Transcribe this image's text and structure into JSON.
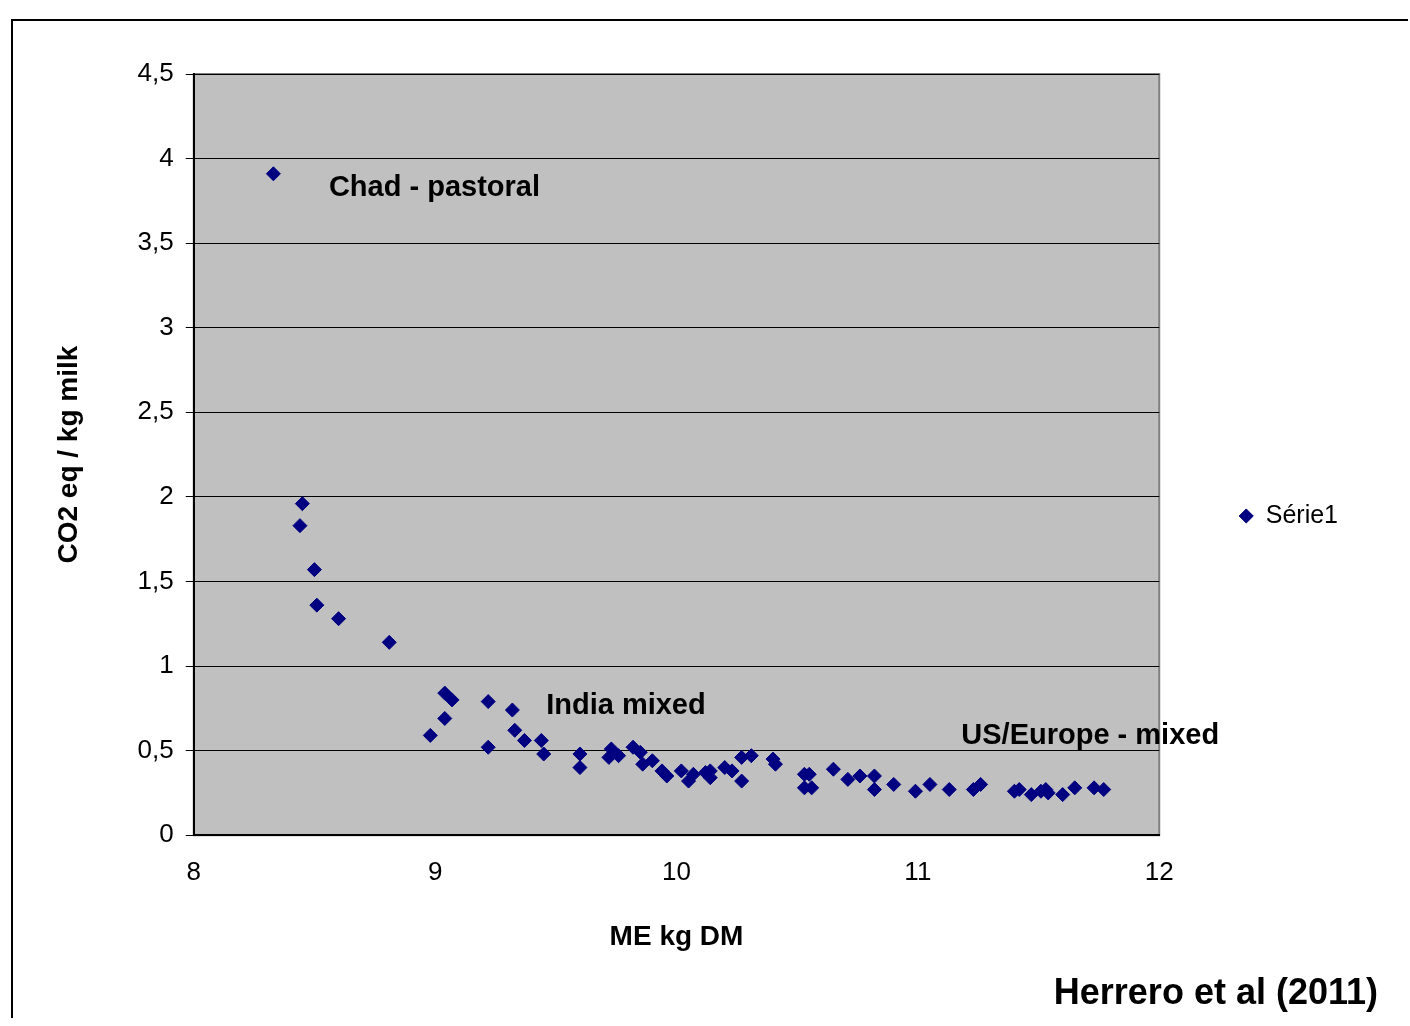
{
  "chart_data": {
    "type": "scatter",
    "xlabel": "ME kg DM",
    "ylabel": "CO2 eq / kg milk",
    "x": [
      8.33,
      8.45,
      8.44,
      8.5,
      8.51,
      8.6,
      8.81,
      9.04,
      9.07,
      8.98,
      9.04,
      9.22,
      9.22,
      9.32,
      9.33,
      9.37,
      9.44,
      9.45,
      9.6,
      9.6,
      9.73,
      9.72,
      9.76,
      9.82,
      9.85,
      9.86,
      9.9,
      9.94,
      9.96,
      10.02,
      10.05,
      10.07,
      10.12,
      10.14,
      10.14,
      10.2,
      10.23,
      10.27,
      10.27,
      10.31,
      10.4,
      10.41,
      10.53,
      10.55,
      10.53,
      10.56,
      10.65,
      10.71,
      10.76,
      10.82,
      10.82,
      10.9,
      10.99,
      11.05,
      11.13,
      11.23,
      11.26,
      11.4,
      11.42,
      11.47,
      11.51,
      11.53,
      11.54,
      11.6,
      11.65,
      11.73,
      11.77
    ],
    "series": [
      {
        "name": "Série1",
        "color": "#000080",
        "values": [
          3.91,
          1.96,
          1.83,
          1.57,
          1.36,
          1.28,
          1.14,
          0.84,
          0.8,
          0.59,
          0.69,
          0.79,
          0.52,
          0.74,
          0.62,
          0.56,
          0.56,
          0.48,
          0.48,
          0.4,
          0.51,
          0.46,
          0.47,
          0.52,
          0.49,
          0.42,
          0.44,
          0.38,
          0.35,
          0.38,
          0.32,
          0.36,
          0.37,
          0.34,
          0.38,
          0.4,
          0.38,
          0.32,
          0.46,
          0.47,
          0.45,
          0.42,
          0.36,
          0.36,
          0.28,
          0.28,
          0.39,
          0.33,
          0.35,
          0.35,
          0.27,
          0.3,
          0.26,
          0.3,
          0.27,
          0.27,
          0.3,
          0.26,
          0.27,
          0.24,
          0.26,
          0.27,
          0.25,
          0.24,
          0.28,
          0.28,
          0.27
        ]
      }
    ],
    "xlim": [
      8,
      12
    ],
    "xticks": [
      8,
      9,
      10,
      11,
      12
    ],
    "ylim": [
      0,
      4.5
    ],
    "yticks": [
      0,
      {
        "value": 0.5,
        "label": "0,5"
      },
      1,
      {
        "value": 1.5,
        "label": "1,5"
      },
      2,
      {
        "value": 2.5,
        "label": "2,5"
      },
      3,
      {
        "value": 3.5,
        "label": "3,5"
      },
      4,
      {
        "value": 4.5,
        "label": "4,5"
      }
    ],
    "grid": "y",
    "legend": "right",
    "marker": "diamond",
    "annotations": [
      "Chad - pastoral",
      "India mixed",
      "US/Europe - mixed",
      "Herrero et al (2011)"
    ]
  }
}
